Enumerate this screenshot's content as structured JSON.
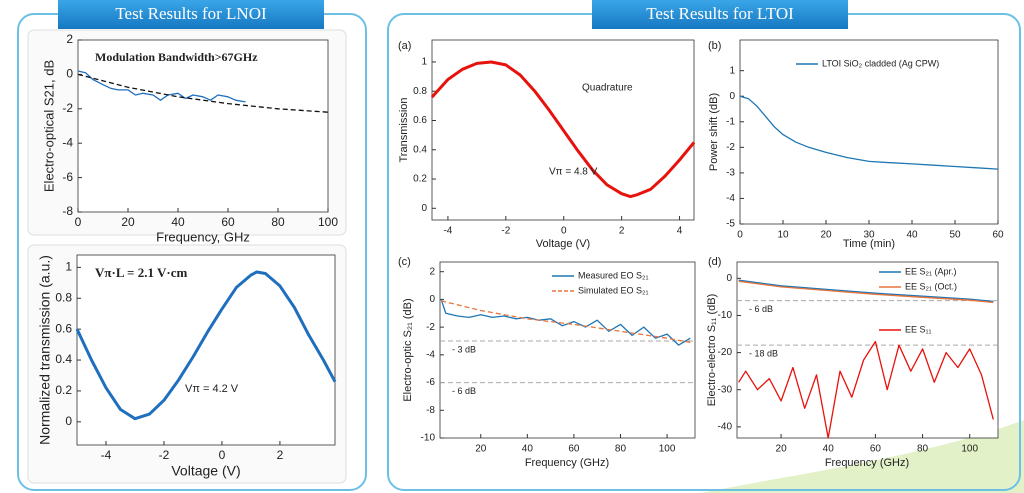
{
  "headers": [
    "Test Results for LNOI",
    "Test Results for LTOI"
  ],
  "chart_data": [
    {
      "type": "line",
      "xlabel": "Frequency, GHz",
      "ylabel": "Electro-optical S21, dB",
      "annotations": [
        "Modulation Bandwidth>67GHz"
      ],
      "annotation_color": "#e00000",
      "xlim": [
        0,
        100
      ],
      "xticks": [
        0,
        20,
        40,
        60,
        80,
        100
      ],
      "ylim": [
        -8,
        2
      ],
      "yticks": [
        -8,
        -6,
        -4,
        -2,
        0,
        2
      ],
      "series": [
        {
          "color": "#1f6fbf",
          "style": "solid",
          "x": [
            0,
            3,
            6,
            10,
            13,
            16,
            20,
            23,
            26,
            30,
            33,
            36,
            40,
            43,
            46,
            50,
            53,
            56,
            60,
            63,
            67
          ],
          "values": [
            0.2,
            0.1,
            -0.3,
            -0.6,
            -0.8,
            -0.9,
            -0.9,
            -1.2,
            -1.1,
            -1.2,
            -1.5,
            -1.2,
            -1.1,
            -1.4,
            -1.2,
            -1.3,
            -1.5,
            -1.2,
            -1.3,
            -1.5,
            -1.6
          ]
        },
        {
          "color": "#111111",
          "style": "dashed",
          "x": [
            0,
            20,
            40,
            60,
            80,
            100
          ],
          "values": [
            0,
            -0.75,
            -1.3,
            -1.7,
            -2.0,
            -2.2
          ]
        }
      ]
    },
    {
      "type": "line",
      "xlabel": "Voltage (V)",
      "ylabel": "Normalized transmission (a.u.)",
      "annotations": [
        "Vπ·L = 2.1 V·cm",
        "Vπ = 4.2 V"
      ],
      "annotation_color": "#e00000",
      "xlim": [
        -5,
        3.9
      ],
      "xticks": [
        -4,
        -2,
        0,
        2
      ],
      "ylim": [
        -0.15,
        1.08
      ],
      "yticks": [
        0,
        0.2,
        0.4,
        0.6,
        0.8,
        1
      ],
      "series": [
        {
          "color": "#1f6fbf",
          "style": "thick",
          "x": [
            -5,
            -4.5,
            -4,
            -3.5,
            -3,
            -2.5,
            -2,
            -1.5,
            -1,
            -0.5,
            0,
            0.5,
            1,
            1.2,
            1.5,
            2,
            2.5,
            3,
            3.5,
            3.9
          ],
          "values": [
            0.6,
            0.4,
            0.22,
            0.08,
            0.02,
            0.05,
            0.14,
            0.27,
            0.42,
            0.58,
            0.73,
            0.87,
            0.95,
            0.97,
            0.96,
            0.88,
            0.74,
            0.56,
            0.4,
            0.26
          ]
        }
      ]
    },
    {
      "type": "line",
      "title": "(a)",
      "xlabel": "Voltage (V)",
      "ylabel": "Transmission",
      "annotations": [
        "Quadrature",
        "Vπ = 4.8 V"
      ],
      "xlim": [
        -4.55,
        4.5
      ],
      "xticks": [
        -4,
        -2,
        0,
        2,
        4
      ],
      "ylim": [
        -0.08,
        1.15
      ],
      "yticks": [
        0,
        0.2,
        0.4,
        0.6,
        0.8,
        1
      ],
      "series": [
        {
          "color": "#e8120c",
          "style": "thick",
          "x": [
            -4.55,
            -4,
            -3.5,
            -3,
            -2.5,
            -2,
            -1.5,
            -1,
            -0.5,
            0,
            0.5,
            1,
            1.5,
            2,
            2.3,
            2.5,
            3,
            3.5,
            4,
            4.5
          ],
          "values": [
            0.76,
            0.88,
            0.95,
            0.99,
            1.0,
            0.98,
            0.91,
            0.8,
            0.67,
            0.53,
            0.39,
            0.26,
            0.16,
            0.1,
            0.08,
            0.09,
            0.13,
            0.22,
            0.33,
            0.45
          ]
        }
      ]
    },
    {
      "type": "line",
      "title": "(b)",
      "xlabel": "Time (min)",
      "ylabel": "Power shift (dB)",
      "xlim": [
        0,
        60
      ],
      "xticks": [
        0,
        10,
        20,
        30,
        40,
        50,
        60
      ],
      "ylim": [
        -5,
        2.2
      ],
      "yticks": [
        -5,
        -4,
        -3,
        -2,
        -1,
        0,
        1
      ],
      "series": [
        {
          "name": "LTOI SiO₂ cladded (Ag CPW)",
          "color": "#1f77b4",
          "style": "solid",
          "x": [
            0,
            2,
            4,
            6,
            8,
            10,
            13,
            16,
            20,
            25,
            30,
            35,
            40,
            45,
            50,
            55,
            60
          ],
          "values": [
            0,
            -0.1,
            -0.4,
            -0.8,
            -1.2,
            -1.5,
            -1.8,
            -2.0,
            -2.2,
            -2.4,
            -2.55,
            -2.6,
            -2.65,
            -2.7,
            -2.75,
            -2.8,
            -2.85
          ]
        }
      ]
    },
    {
      "type": "line",
      "title": "(c)",
      "xlabel": "Frequency (GHz)",
      "ylabel": "Electro-optic S₂₁ (dB)",
      "xlim": [
        2.5,
        112
      ],
      "xticks": [
        20,
        40,
        60,
        80,
        100
      ],
      "ylim": [
        -10,
        2.7
      ],
      "yticks": [
        -10,
        -8,
        -6,
        -4,
        -2,
        0,
        2
      ],
      "ref_lines": [
        {
          "value": -3,
          "label": "- 3 dB"
        },
        {
          "value": -6,
          "label": "- 6 dB"
        }
      ],
      "series": [
        {
          "name": "Measured EO S₂₁",
          "color": "#1f77b4",
          "style": "solid",
          "x": [
            3,
            5,
            10,
            15,
            20,
            25,
            30,
            35,
            40,
            45,
            50,
            55,
            60,
            65,
            70,
            75,
            80,
            85,
            90,
            95,
            100,
            105,
            110
          ],
          "values": [
            0,
            -1,
            -1.2,
            -1.3,
            -1.1,
            -1.3,
            -1.2,
            -1.4,
            -1.3,
            -1.5,
            -1.4,
            -1.9,
            -1.6,
            -2.0,
            -1.5,
            -2.3,
            -1.8,
            -2.6,
            -2.0,
            -2.8,
            -2.5,
            -3.3,
            -2.8
          ]
        },
        {
          "name": "Simulated EO S₂₁",
          "color": "#e8743b",
          "style": "dashed",
          "x": [
            3,
            20,
            40,
            60,
            80,
            100,
            110
          ],
          "values": [
            -0.1,
            -0.8,
            -1.4,
            -1.8,
            -2.3,
            -2.8,
            -3.1
          ]
        }
      ]
    },
    {
      "type": "line",
      "title": "(d)",
      "xlabel": "Frequency (GHz)",
      "ylabel": "Electro-electro S₁₁ (dB)",
      "xlim": [
        1.3,
        112
      ],
      "xticks": [
        20,
        40,
        60,
        80,
        100
      ],
      "ylim": [
        -43,
        4.4
      ],
      "yticks": [
        -40,
        -30,
        -20,
        -10,
        0
      ],
      "ref_lines": [
        {
          "value": -6,
          "label": "- 6 dB"
        },
        {
          "value": -18,
          "label": "- 18 dB"
        }
      ],
      "series": [
        {
          "name": "EE S₂₁ (Apr.)",
          "color": "#1f77b4",
          "style": "solid",
          "x": [
            2,
            20,
            40,
            60,
            80,
            100,
            110
          ],
          "values": [
            -0.5,
            -2,
            -3,
            -4,
            -4.8,
            -5.6,
            -6.2
          ]
        },
        {
          "name": "EE S₂₁ (Oct.)",
          "color": "#e8743b",
          "style": "solid",
          "x": [
            2,
            20,
            40,
            60,
            80,
            100,
            110
          ],
          "values": [
            -0.8,
            -2.3,
            -3.3,
            -4.3,
            -5.1,
            -5.9,
            -6.5
          ]
        },
        {
          "name": "EE S₁₁",
          "color": "#e8120c",
          "style": "solid",
          "x": [
            2,
            5,
            10,
            15,
            20,
            25,
            30,
            35,
            40,
            45,
            50,
            55,
            60,
            65,
            70,
            75,
            80,
            85,
            90,
            95,
            100,
            105,
            110
          ],
          "values": [
            -28,
            -25,
            -30,
            -27,
            -33,
            -24,
            -35,
            -26,
            -43,
            -25,
            -32,
            -22,
            -17,
            -30,
            -18,
            -25,
            -19,
            -28,
            -20,
            -24,
            -19,
            -26,
            -38
          ]
        }
      ]
    }
  ]
}
